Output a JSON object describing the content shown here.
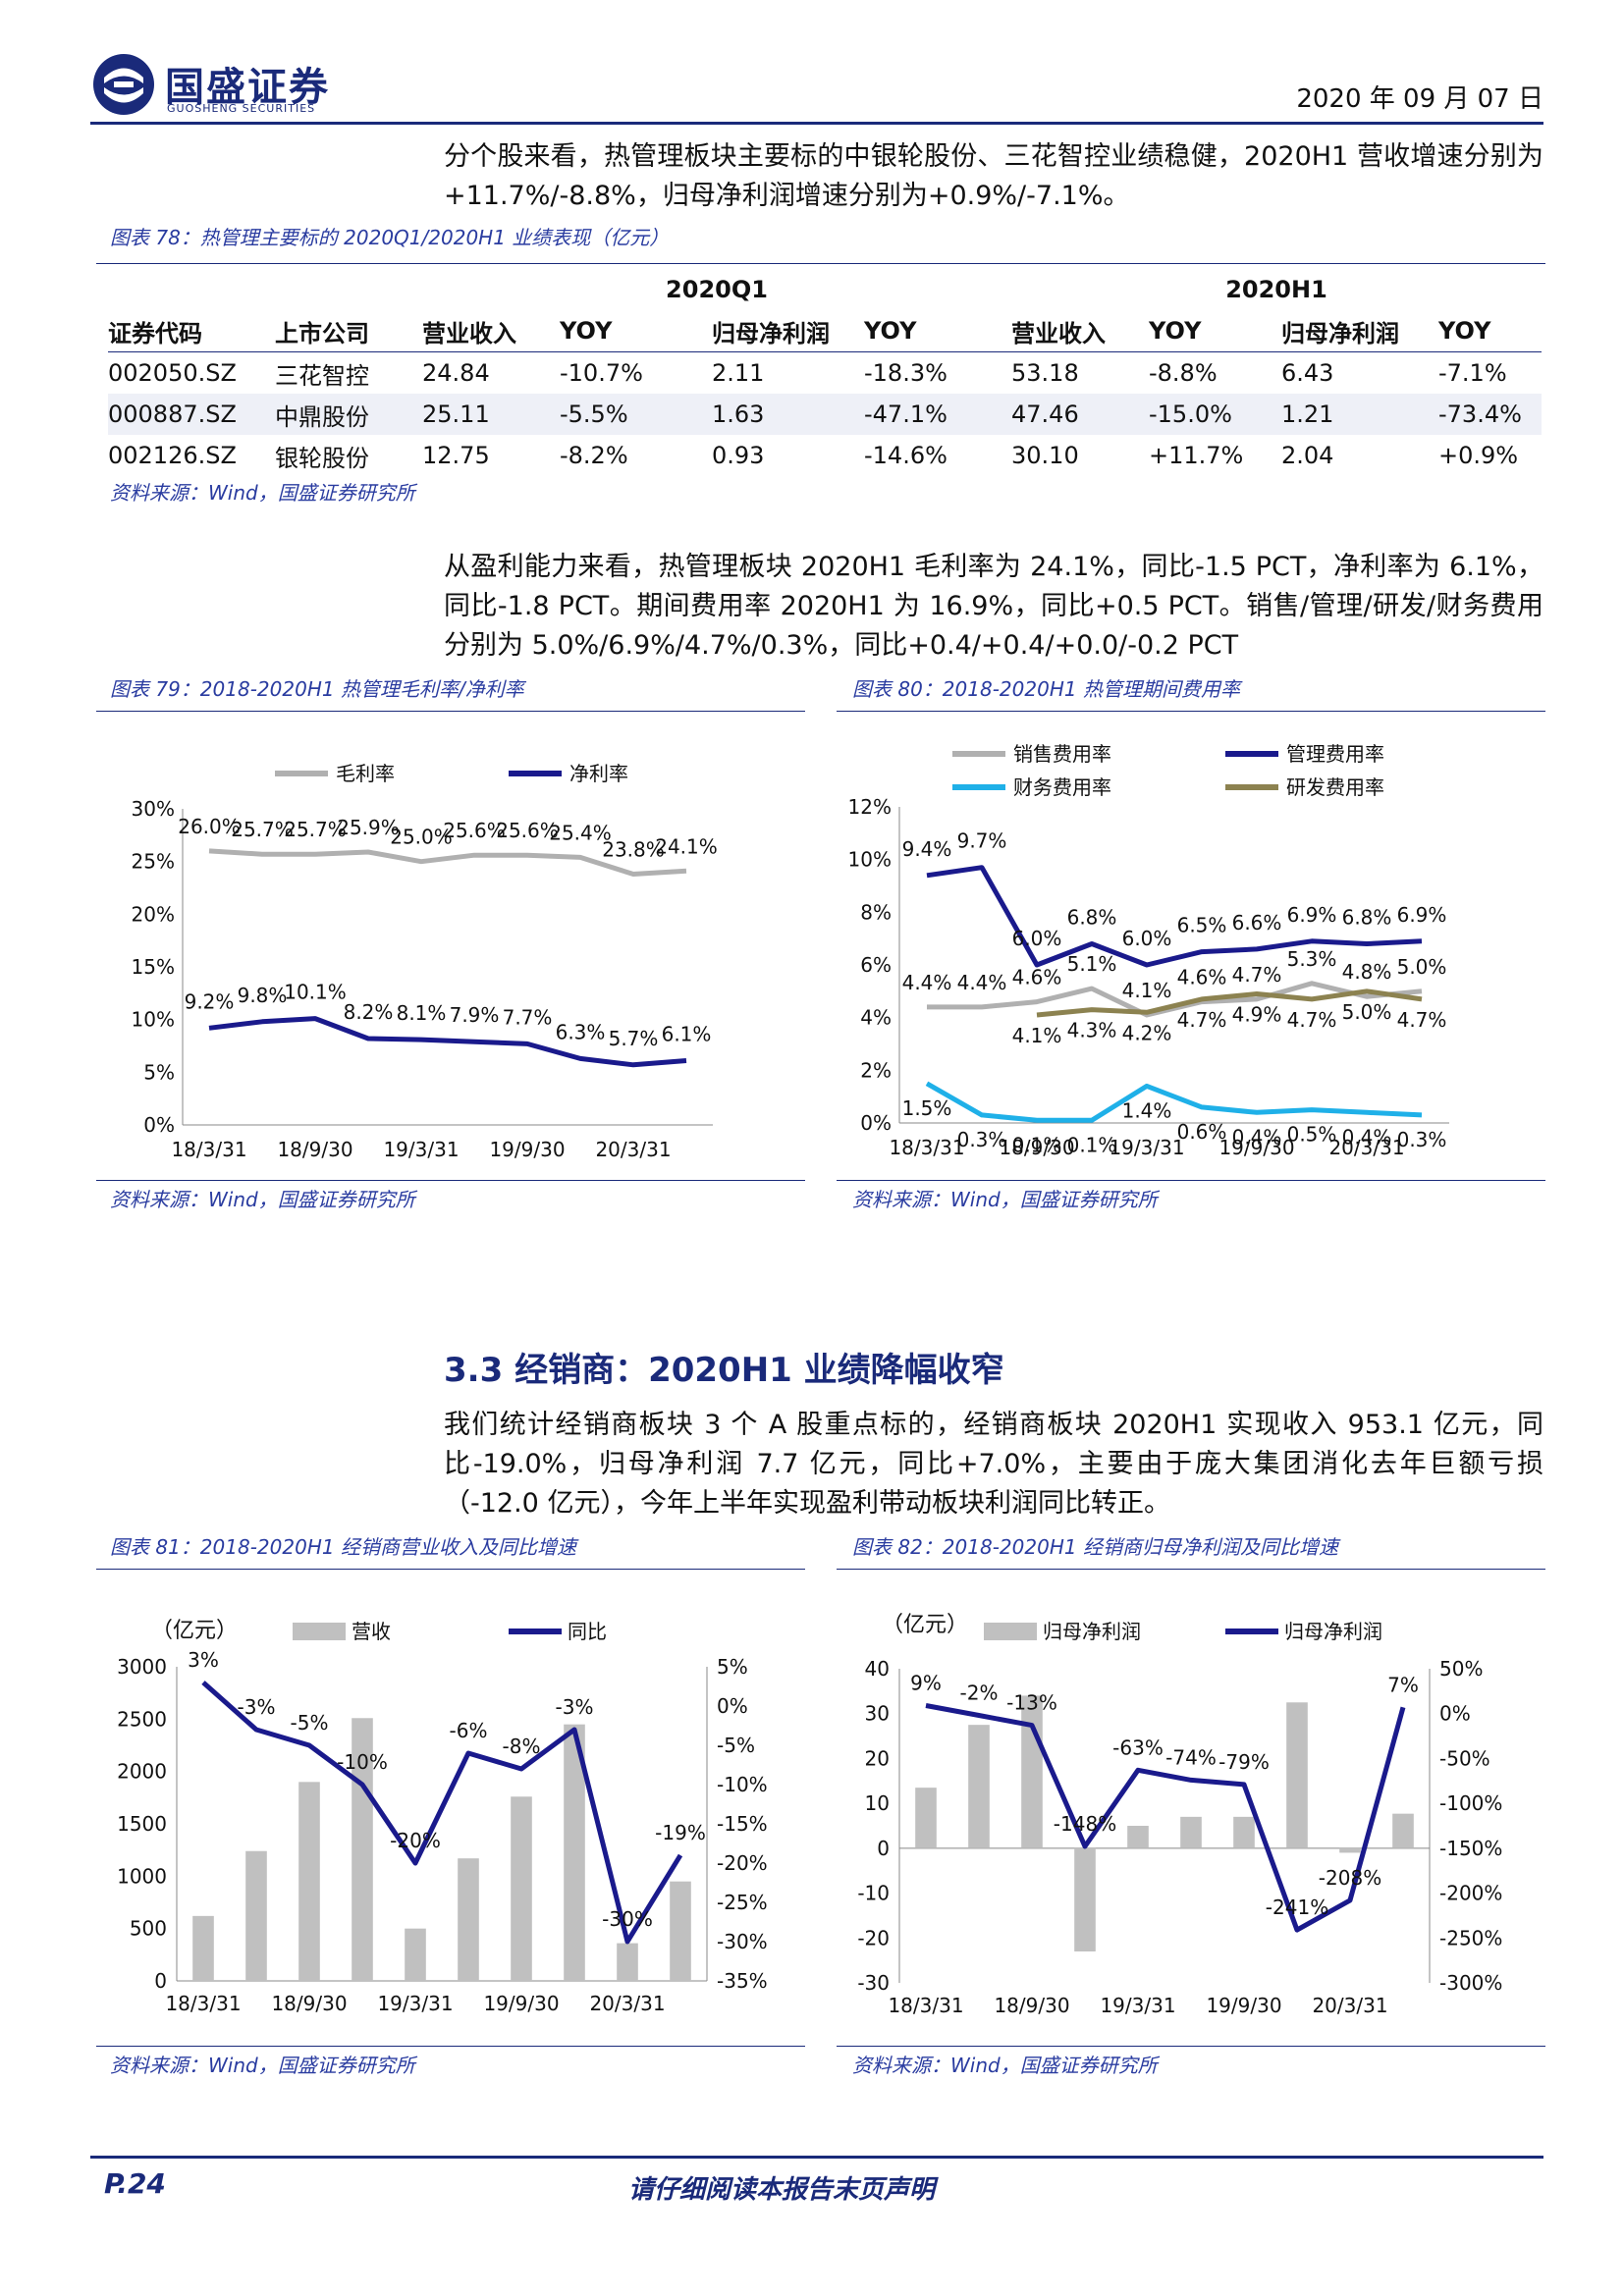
{
  "header": {
    "brand_name": "国盛证券",
    "brand_sub": "GUOSHENG SECURITIES",
    "date": "2020 年 09 月 07 日"
  },
  "paragraph1": "分个股来看，热管理板块主要标的中银轮股份、三花智控业绩稳健，2020H1 营收增速分别为+11.7%/-8.8%，归母净利润增速分别为+0.9%/-7.1%。",
  "fig78": {
    "caption": "图表 78：热管理主要标的 2020Q1/2020H1 业绩表现（亿元）",
    "group_headers": [
      "2020Q1",
      "2020H1"
    ],
    "columns": [
      "证券代码",
      "上市公司",
      "营业收入",
      "YOY",
      "归母净利润",
      "YOY",
      "营业收入",
      "YOY",
      "归母净利润",
      "YOY"
    ],
    "rows": [
      [
        "002050.SZ",
        "三花智控",
        "24.84",
        "-10.7%",
        "2.11",
        "-18.3%",
        "53.18",
        "-8.8%",
        "6.43",
        "-7.1%"
      ],
      [
        "000887.SZ",
        "中鼎股份",
        "25.11",
        "-5.5%",
        "1.63",
        "-47.1%",
        "47.46",
        "-15.0%",
        "1.21",
        "-73.4%"
      ],
      [
        "002126.SZ",
        "银轮股份",
        "12.75",
        "-8.2%",
        "0.93",
        "-14.6%",
        "30.10",
        "+11.7%",
        "2.04",
        "+0.9%"
      ]
    ],
    "source": "资料来源：Wind，国盛证券研究所"
  },
  "paragraph2": "从盈利能力来看，热管理板块 2020H1 毛利率为 24.1%，同比-1.5 PCT，净利率为 6.1%，同比-1.8 PCT。期间费用率 2020H1 为 16.9%，同比+0.5 PCT。销售/管理/研发/财务费用分别为 5.0%/6.9%/4.7%/0.3%，同比+0.4/+0.4/+0.0/-0.2 PCT",
  "fig79": {
    "caption": "图表 79：2018-2020H1 热管理毛利率/净利率",
    "source": "资料来源：Wind，国盛证券研究所"
  },
  "fig80": {
    "caption": "图表 80：2018-2020H1 热管理期间费用率",
    "source": "资料来源：Wind，国盛证券研究所"
  },
  "section_title": "3.3 经销商：2020H1 业绩降幅收窄",
  "paragraph3": "我们统计经销商板块 3 个 A 股重点标的，经销商板块 2020H1 实现收入 953.1 亿元，同比-19.0%，归母净利润 7.7 亿元，同比+7.0%，主要由于庞大集团消化去年巨额亏损（-12.0 亿元），今年上半年实现盈利带动板块利润同比转正。",
  "fig81": {
    "caption": "图表 81：2018-2020H1 经销商营业收入及同比增速",
    "source": "资料来源：Wind，国盛证券研究所"
  },
  "fig82": {
    "caption": "图表 82：2018-2020H1 经销商归母净利润及同比增速",
    "source": "资料来源：Wind，国盛证券研究所"
  },
  "footer": {
    "page": "P.24",
    "center": "请仔细阅读本报告末页声明"
  },
  "colors": {
    "brand": "#1a2a7a",
    "gray": "#b0b0b0",
    "navy": "#1a1a8c",
    "cyan": "#1fb0e8",
    "olive": "#8c8250"
  },
  "chart_data": [
    {
      "id": "fig79",
      "type": "line",
      "x": [
        "18/3/31",
        "18/6/30",
        "18/9/30",
        "18/12/31",
        "19/3/31",
        "19/6/30",
        "19/9/30",
        "19/12/31",
        "20/3/31",
        "20/6/30"
      ],
      "x_tick_labels": [
        "18/3/31",
        "18/9/30",
        "19/3/31",
        "19/9/30",
        "20/3/31"
      ],
      "series": [
        {
          "name": "毛利率",
          "values": [
            26.0,
            25.7,
            25.7,
            25.9,
            25.0,
            25.6,
            25.6,
            25.4,
            23.8,
            24.1
          ],
          "labels": [
            "26.0%",
            "25.7%",
            "25.7%",
            "25.9%",
            "25.0%",
            "25.6%",
            "25.6%",
            "25.4%",
            "23.8%",
            "24.1%"
          ],
          "color": "#b0b0b0"
        },
        {
          "name": "净利率",
          "values": [
            9.2,
            9.8,
            10.1,
            8.2,
            8.1,
            7.9,
            7.7,
            6.3,
            5.7,
            6.1
          ],
          "labels": [
            "9.2%",
            "9.8%",
            "10.1%",
            "8.2%",
            "8.1%",
            "7.9%",
            "7.7%",
            "6.3%",
            "5.7%",
            "6.1%"
          ],
          "color": "#1a1a8c"
        }
      ],
      "y_ticks": [
        "0%",
        "5%",
        "10%",
        "15%",
        "20%",
        "25%",
        "30%"
      ],
      "ylim": [
        0,
        30
      ]
    },
    {
      "id": "fig80",
      "type": "line",
      "x": [
        "18/3/31",
        "18/6/30",
        "18/9/30",
        "18/12/31",
        "19/3/31",
        "19/6/30",
        "19/9/30",
        "19/12/31",
        "20/3/31",
        "20/6/30"
      ],
      "x_tick_labels": [
        "18/3/31",
        "18/9/30",
        "19/3/31",
        "19/9/30",
        "20/3/31"
      ],
      "series": [
        {
          "name": "销售费用率",
          "values": [
            4.4,
            4.4,
            4.6,
            5.1,
            4.1,
            4.6,
            4.7,
            5.3,
            4.8,
            5.0
          ],
          "labels": [
            "4.4%",
            "4.4%",
            "4.6%",
            "5.1%",
            "4.1%",
            "4.6%",
            "4.7%",
            "5.3%",
            "4.8%",
            "5.0%"
          ],
          "color": "#b0b0b0"
        },
        {
          "name": "管理费用率",
          "values": [
            9.4,
            9.7,
            6.0,
            6.8,
            6.0,
            6.5,
            6.6,
            6.9,
            6.8,
            6.9
          ],
          "labels": [
            "9.4%",
            "9.7%",
            "6.0%",
            "6.8%",
            "6.0%",
            "6.5%",
            "6.6%",
            "6.9%",
            "6.8%",
            "6.9%"
          ],
          "color": "#1a1a8c"
        },
        {
          "name": "财务费用率",
          "values": [
            1.5,
            0.3,
            0.1,
            0.1,
            1.4,
            0.6,
            0.4,
            0.5,
            0.4,
            0.3
          ],
          "labels": [
            "1.5%",
            "0.3%",
            "0.1%",
            "0.1%",
            "1.4%",
            "0.6%",
            "0.4%",
            "0.5%",
            "0.4%",
            "0.3%"
          ],
          "color": "#1fb0e8"
        },
        {
          "name": "研发费用率",
          "values": [
            null,
            null,
            4.1,
            4.3,
            4.2,
            4.7,
            4.9,
            4.7,
            5.0,
            4.7
          ],
          "labels": [
            "",
            "",
            "4.1%",
            "4.3%",
            "4.2%",
            "4.7%",
            "4.9%",
            "4.7%",
            "5.0%",
            "4.7%"
          ],
          "color": "#8c8250"
        }
      ],
      "y_ticks": [
        "0%",
        "2%",
        "4%",
        "6%",
        "8%",
        "10%",
        "12%"
      ],
      "ylim": [
        0,
        12
      ]
    },
    {
      "id": "fig81",
      "type": "bar+line",
      "unit": "（亿元）",
      "x": [
        "18/3/31",
        "18/6/30",
        "18/9/30",
        "18/12/31",
        "19/3/31",
        "19/6/30",
        "19/9/30",
        "19/12/31",
        "20/3/31",
        "20/6/30"
      ],
      "x_tick_labels": [
        "18/3/31",
        "18/9/30",
        "19/3/31",
        "19/9/30",
        "20/3/31"
      ],
      "series": [
        {
          "name": "营收",
          "type": "bar",
          "axis": "left",
          "values": [
            620,
            1240,
            1900,
            2510,
            500,
            1170,
            1760,
            2450,
            360,
            950
          ],
          "color": "#c0c0c0"
        },
        {
          "name": "同比",
          "type": "line",
          "axis": "right",
          "values": [
            3,
            -3,
            -5,
            -10,
            -20,
            -6,
            -8,
            -3,
            -30,
            -19
          ],
          "labels": [
            "3%",
            "-3%",
            "-5%",
            "-10%",
            "-20%",
            "-6%",
            "-8%",
            "-3%",
            "-30%",
            "-19%"
          ],
          "color": "#1a1a8c"
        }
      ],
      "y_left_ticks": [
        "0",
        "500",
        "1000",
        "1500",
        "2000",
        "2500",
        "3000"
      ],
      "y_right_ticks": [
        "-35%",
        "-30%",
        "-25%",
        "-20%",
        "-15%",
        "-10%",
        "-5%",
        "0%",
        "5%"
      ],
      "ylim_left": [
        0,
        3000
      ],
      "ylim_right": [
        -35,
        5
      ]
    },
    {
      "id": "fig82",
      "type": "bar+line",
      "unit": "（亿元）",
      "x": [
        "18/3/31",
        "18/6/30",
        "18/9/30",
        "18/12/31",
        "19/3/31",
        "19/6/30",
        "19/9/30",
        "19/12/31",
        "20/3/31",
        "20/6/30"
      ],
      "x_tick_labels": [
        "18/3/31",
        "18/9/30",
        "19/3/31",
        "19/9/30",
        "20/3/31"
      ],
      "series": [
        {
          "name": "归母净利润",
          "type": "bar",
          "axis": "left",
          "values": [
            13.5,
            27.5,
            34,
            -23,
            5,
            7,
            7,
            32.5,
            -1,
            7.7
          ],
          "color": "#c0c0c0"
        },
        {
          "name": "归母净利润",
          "type": "line",
          "axis": "right",
          "values": [
            9,
            -2,
            -13,
            -148,
            -63,
            -74,
            -79,
            -241,
            -208,
            7
          ],
          "labels": [
            "9%",
            "-2%",
            "-13%",
            "-148%",
            "-63%",
            "-74%",
            "-79%",
            "-241%",
            "-208%",
            "7%"
          ],
          "color": "#1a1a8c"
        }
      ],
      "y_left_ticks": [
        "-30",
        "-20",
        "-10",
        "0",
        "10",
        "20",
        "30",
        "40"
      ],
      "y_right_ticks": [
        "-300%",
        "-250%",
        "-200%",
        "-150%",
        "-100%",
        "-50%",
        "0%",
        "50%"
      ],
      "ylim_left": [
        -30,
        40
      ],
      "ylim_right": [
        -300,
        50
      ]
    }
  ]
}
